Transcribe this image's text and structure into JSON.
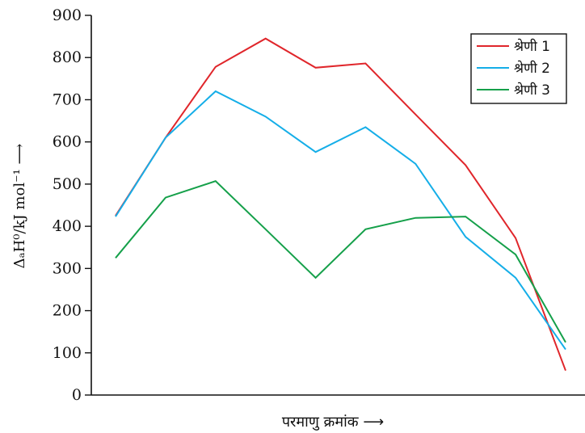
{
  "chart_data": {
    "type": "line",
    "title": "",
    "xlabel": "परमाणु क्रमांक ⟶",
    "ylabel": "ΔₐH⁰/kJ mol⁻¹ ⟶",
    "ylim": [
      0,
      900
    ],
    "yticks": [
      "0",
      "100",
      "200",
      "300",
      "400",
      "500",
      "600",
      "700",
      "800",
      "900"
    ],
    "grid": false,
    "legend_position": "top-right",
    "series": [
      {
        "name": "श्रेणी 1",
        "color": "#e0262b",
        "values": [
          425,
          610,
          778,
          845,
          776,
          786,
          665,
          545,
          372,
          58
        ]
      },
      {
        "name": "श्रेणी 2",
        "color": "#15aee8",
        "values": [
          423,
          610,
          720,
          660,
          576,
          635,
          548,
          375,
          278,
          108
        ]
      },
      {
        "name": "श्रेणी 3",
        "color": "#15a04a",
        "values": [
          325,
          468,
          507,
          393,
          278,
          393,
          420,
          423,
          333,
          125
        ]
      }
    ]
  }
}
